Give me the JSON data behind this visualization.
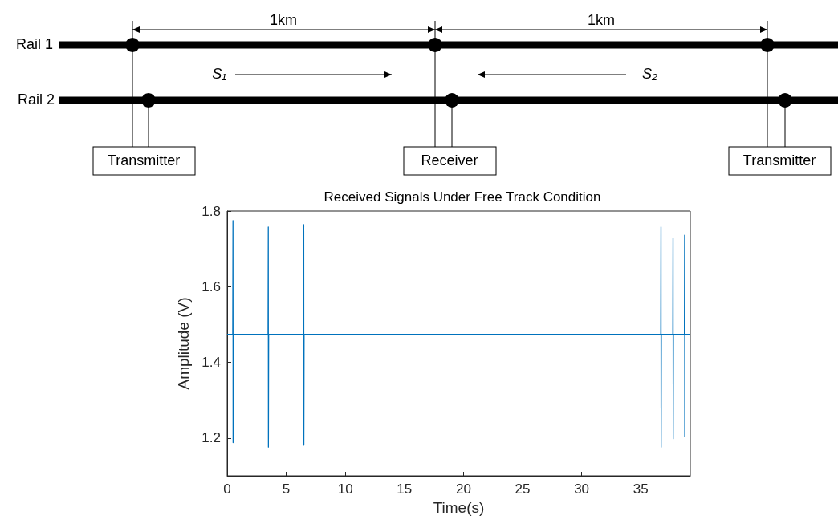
{
  "chart_data": {
    "type": "line",
    "title": "Received Signals Under Free Track Condition",
    "xlabel": "Time(s)",
    "ylabel": "Amplitude (V)",
    "annotations": [
      "Rail 1",
      "Rail 2",
      "1km",
      "1km",
      "S₁",
      "S₂",
      "Transmitter",
      "Receiver",
      "Transmitter"
    ],
    "x": [
      0,
      0.47,
      0.49,
      0.5,
      0.52,
      3.46,
      3.48,
      3.49,
      3.51,
      6.46,
      6.48,
      6.49,
      6.51,
      36.7,
      36.72,
      36.73,
      36.75,
      37.72,
      37.74,
      37.75,
      37.77,
      38.7,
      38.72,
      38.73,
      38.75,
      39.2
    ],
    "series": [
      {
        "color": "#0072bd",
        "values": [
          1.474,
          1.474,
          1.775,
          1.188,
          1.474,
          1.474,
          1.758,
          1.176,
          1.474,
          1.474,
          1.764,
          1.181,
          1.474,
          1.474,
          1.758,
          1.176,
          1.474,
          1.474,
          1.729,
          1.198,
          1.474,
          1.474,
          1.736,
          1.203,
          1.474,
          1.474
        ]
      }
    ],
    "xlim": [
      0,
      39.2
    ],
    "xticks": [
      0,
      5,
      10,
      15,
      20,
      25,
      30,
      35
    ],
    "ylim": [
      1.1,
      1.8
    ],
    "yticks": [
      1.2,
      1.4,
      1.6,
      1.8
    ],
    "grid": false,
    "marker": "none",
    "line_style": "solid"
  }
}
